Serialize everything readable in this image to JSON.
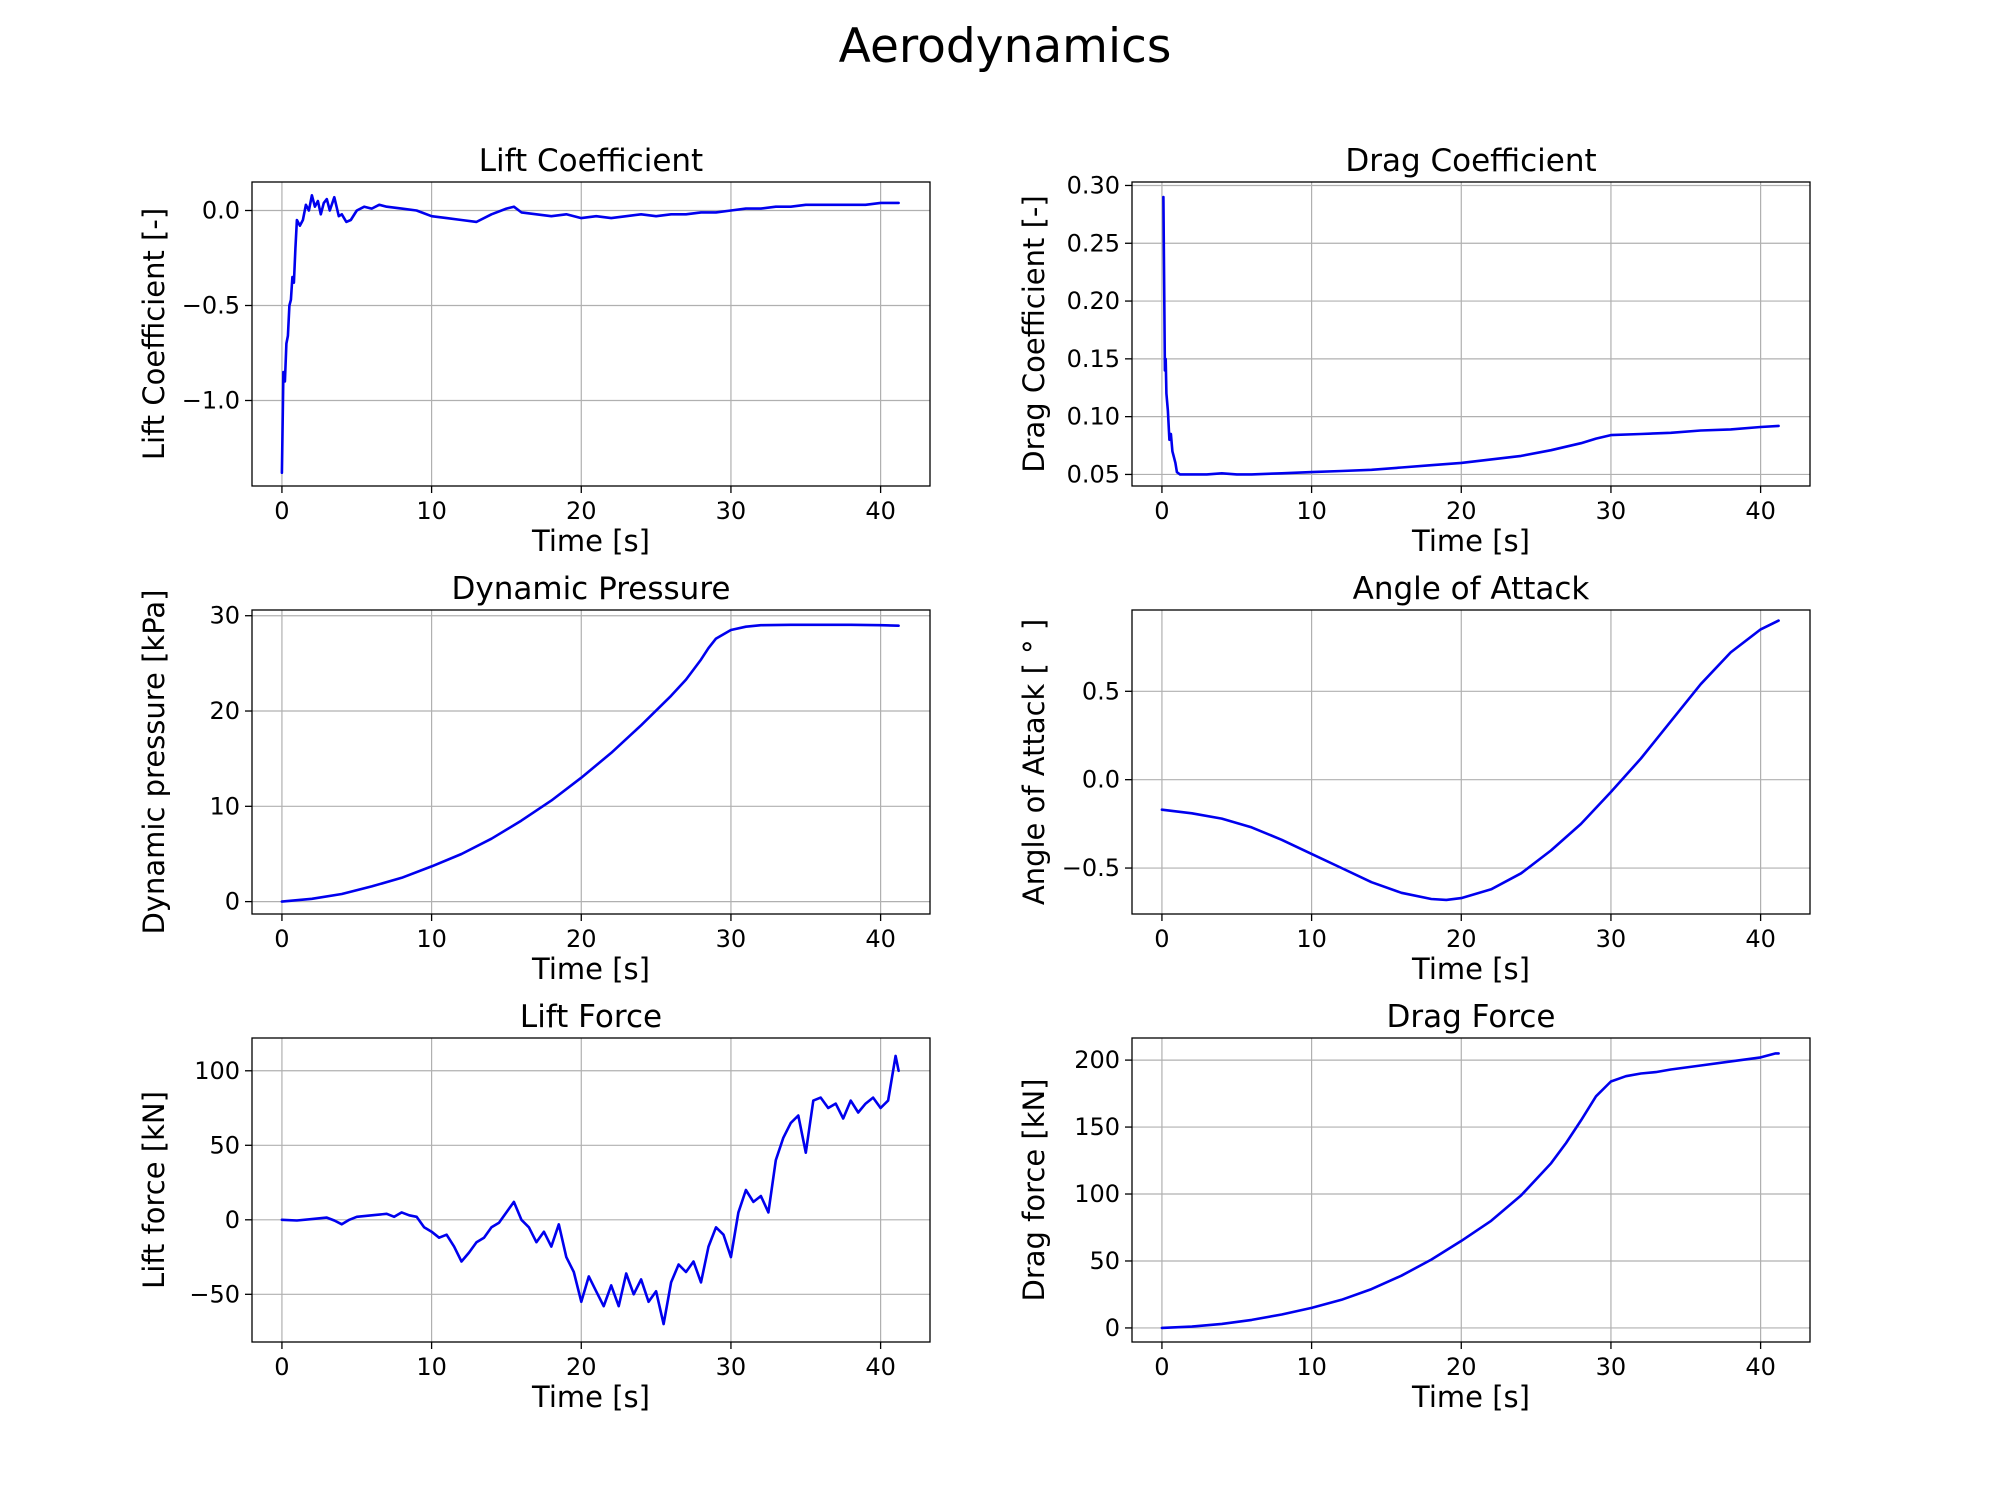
{
  "title": "Aerodynamics",
  "colors": {
    "series": "#0000ee",
    "grid": "#b0b0b0"
  },
  "chart_data": [
    {
      "type": "line",
      "title": "Lift Coefficient",
      "xlabel": "Time [s]",
      "ylabel": "Lift Coefficient [-]",
      "xlim": [
        -2,
        43.3
      ],
      "ylim": [
        -1.45,
        0.15
      ],
      "xticks": [
        0,
        10,
        20,
        30,
        40
      ],
      "yticks": [
        0.0,
        -0.5,
        -1.0
      ],
      "ytick_labels": [
        "0.0",
        "−0.5",
        "−1.0"
      ],
      "grid": true,
      "x": [
        0,
        0.1,
        0.2,
        0.3,
        0.4,
        0.5,
        0.6,
        0.7,
        0.8,
        0.9,
        1.0,
        1.2,
        1.4,
        1.6,
        1.8,
        2.0,
        2.2,
        2.4,
        2.6,
        2.8,
        3,
        3.2,
        3.5,
        3.8,
        4.0,
        4.3,
        4.6,
        5,
        5.5,
        6,
        6.5,
        7,
        8,
        9,
        10,
        11,
        12,
        13,
        14,
        15,
        15.5,
        16,
        17,
        18,
        19,
        20,
        21,
        22,
        23,
        24,
        25,
        26,
        27,
        28,
        29,
        30,
        31,
        32,
        33,
        34,
        35,
        36,
        37,
        38,
        39,
        40,
        41,
        41.2
      ],
      "y": [
        -1.38,
        -0.85,
        -0.9,
        -0.7,
        -0.66,
        -0.5,
        -0.47,
        -0.35,
        -0.38,
        -0.2,
        -0.05,
        -0.08,
        -0.05,
        0.03,
        0.0,
        0.08,
        0.02,
        0.05,
        -0.02,
        0.04,
        0.06,
        0.0,
        0.07,
        -0.03,
        -0.02,
        -0.06,
        -0.05,
        0.0,
        0.02,
        0.01,
        0.03,
        0.02,
        0.01,
        0.0,
        -0.03,
        -0.04,
        -0.05,
        -0.06,
        -0.02,
        0.01,
        0.02,
        -0.01,
        -0.02,
        -0.03,
        -0.02,
        -0.04,
        -0.03,
        -0.04,
        -0.03,
        -0.02,
        -0.03,
        -0.02,
        -0.02,
        -0.01,
        -0.01,
        0.0,
        0.01,
        0.01,
        0.02,
        0.02,
        0.03,
        0.03,
        0.03,
        0.03,
        0.03,
        0.04,
        0.04,
        0.04
      ]
    },
    {
      "type": "line",
      "title": "Drag Coefficient",
      "xlabel": "Time [s]",
      "ylabel": "Drag Coefficient [-]",
      "xlim": [
        -2,
        43.3
      ],
      "ylim": [
        0.04,
        0.303
      ],
      "xticks": [
        0,
        10,
        20,
        30,
        40
      ],
      "yticks": [
        0.05,
        0.1,
        0.15,
        0.2,
        0.25,
        0.3
      ],
      "ytick_labels": [
        "0.05",
        "0.10",
        "0.15",
        "0.20",
        "0.25",
        "0.30"
      ],
      "grid": true,
      "x": [
        0.1,
        0.2,
        0.25,
        0.3,
        0.4,
        0.5,
        0.6,
        0.7,
        0.8,
        0.9,
        1.0,
        1.2,
        1.5,
        2,
        3,
        4,
        5,
        6,
        8,
        10,
        12,
        14,
        16,
        18,
        20,
        22,
        24,
        26,
        27,
        28,
        29,
        30,
        32,
        34,
        36,
        38,
        40,
        41.2
      ],
      "y": [
        0.29,
        0.14,
        0.15,
        0.12,
        0.105,
        0.08,
        0.085,
        0.07,
        0.065,
        0.06,
        0.052,
        0.05,
        0.05,
        0.05,
        0.05,
        0.051,
        0.05,
        0.05,
        0.051,
        0.052,
        0.053,
        0.054,
        0.056,
        0.058,
        0.06,
        0.063,
        0.066,
        0.071,
        0.074,
        0.077,
        0.081,
        0.084,
        0.085,
        0.086,
        0.088,
        0.089,
        0.091,
        0.092
      ]
    },
    {
      "type": "line",
      "title": "Dynamic Pressure",
      "xlabel": "Time [s]",
      "ylabel": "Dynamic pressure [kPa]",
      "xlim": [
        -2,
        43.3
      ],
      "ylim": [
        -1.3,
        30.6
      ],
      "xticks": [
        0,
        10,
        20,
        30,
        40
      ],
      "yticks": [
        0,
        10,
        20,
        30
      ],
      "ytick_labels": [
        "0",
        "10",
        "20",
        "30"
      ],
      "grid": true,
      "x": [
        0,
        2,
        4,
        6,
        8,
        10,
        12,
        14,
        16,
        18,
        20,
        22,
        24,
        26,
        27,
        28,
        28.5,
        29,
        30,
        31,
        32,
        34,
        36,
        38,
        40,
        41.2
      ],
      "y": [
        0,
        0.3,
        0.8,
        1.6,
        2.5,
        3.7,
        5.0,
        6.6,
        8.5,
        10.6,
        13.0,
        15.6,
        18.5,
        21.6,
        23.3,
        25.4,
        26.6,
        27.6,
        28.5,
        28.85,
        29.0,
        29.05,
        29.05,
        29.05,
        29.0,
        28.95
      ]
    },
    {
      "type": "line",
      "title": "Angle of Attack",
      "xlabel": "Time [s]",
      "ylabel": "Angle of Attack [ ° ]",
      "xlim": [
        -2,
        43.3
      ],
      "ylim": [
        -0.76,
        0.96
      ],
      "xticks": [
        0,
        10,
        20,
        30,
        40
      ],
      "yticks": [
        -0.5,
        0.0,
        0.5
      ],
      "ytick_labels": [
        "−0.5",
        "0.0",
        "0.5"
      ],
      "grid": true,
      "x": [
        0,
        2,
        4,
        6,
        8,
        10,
        12,
        14,
        16,
        18,
        19,
        20,
        22,
        24,
        26,
        28,
        30,
        32,
        34,
        36,
        38,
        40,
        41.2
      ],
      "y": [
        -0.17,
        -0.19,
        -0.22,
        -0.27,
        -0.34,
        -0.42,
        -0.5,
        -0.58,
        -0.64,
        -0.675,
        -0.68,
        -0.67,
        -0.62,
        -0.53,
        -0.4,
        -0.25,
        -0.07,
        0.12,
        0.33,
        0.54,
        0.72,
        0.85,
        0.9
      ]
    },
    {
      "type": "line",
      "title": "Lift Force",
      "xlabel": "Time [s]",
      "ylabel": "Lift force [kN]",
      "xlim": [
        -2,
        43.3
      ],
      "ylim": [
        -82,
        122
      ],
      "xticks": [
        0,
        10,
        20,
        30,
        40
      ],
      "yticks": [
        -50,
        0,
        50,
        100
      ],
      "ytick_labels": [
        "−50",
        "0",
        "50",
        "100"
      ],
      "grid": true,
      "x": [
        0,
        1,
        2,
        3,
        3.5,
        4,
        4.5,
        5,
        6,
        7,
        7.5,
        8,
        8.5,
        9,
        9.5,
        10,
        10.5,
        11,
        11.5,
        12,
        12.5,
        13,
        13.5,
        14,
        14.5,
        15,
        15.5,
        16,
        16.5,
        17,
        17.5,
        18,
        18.5,
        19,
        19.5,
        20,
        20.5,
        21,
        21.5,
        22,
        22.5,
        23,
        23.5,
        24,
        24.5,
        25,
        25.5,
        26,
        26.5,
        27,
        27.5,
        28,
        28.5,
        29,
        29.5,
        30,
        30.5,
        31,
        31.5,
        32,
        32.5,
        33,
        33.5,
        34,
        34.5,
        35,
        35.5,
        36,
        36.5,
        37,
        37.5,
        38,
        38.5,
        39,
        39.5,
        40,
        40.5,
        41,
        41.2
      ],
      "y": [
        0,
        -0.5,
        0.5,
        1.5,
        -0.5,
        -3,
        0,
        2,
        3,
        4,
        2,
        5,
        3,
        2,
        -5,
        -8,
        -12,
        -10,
        -18,
        -28,
        -22,
        -15,
        -12,
        -5,
        -2,
        5,
        12,
        0,
        -5,
        -15,
        -8,
        -18,
        -3,
        -25,
        -35,
        -55,
        -38,
        -48,
        -58,
        -44,
        -58,
        -36,
        -50,
        -40,
        -55,
        -48,
        -70,
        -42,
        -30,
        -35,
        -28,
        -42,
        -18,
        -5,
        -10,
        -25,
        5,
        20,
        12,
        16,
        5,
        40,
        55,
        65,
        70,
        45,
        80,
        82,
        75,
        78,
        68,
        80,
        72,
        78,
        82,
        75,
        80,
        110,
        100
      ]
    },
    {
      "type": "line",
      "title": "Drag Force",
      "xlabel": "Time [s]",
      "ylabel": "Drag force [kN]",
      "xlim": [
        -2,
        43.3
      ],
      "ylim": [
        -10.5,
        216.5
      ],
      "xticks": [
        0,
        10,
        20,
        30,
        40
      ],
      "yticks": [
        0,
        50,
        100,
        150,
        200
      ],
      "ytick_labels": [
        "0",
        "50",
        "100",
        "150",
        "200"
      ],
      "grid": true,
      "x": [
        0,
        2,
        4,
        6,
        8,
        10,
        12,
        14,
        16,
        18,
        20,
        22,
        24,
        26,
        27,
        28,
        29,
        30,
        31,
        32,
        33,
        34,
        36,
        38,
        40,
        41,
        41.2
      ],
      "y": [
        0,
        1,
        3,
        6,
        10,
        15,
        21,
        29,
        39,
        51,
        65,
        80,
        99,
        123,
        138,
        155,
        173,
        184,
        188,
        190,
        191,
        193,
        196,
        199,
        202,
        205,
        205
      ]
    }
  ]
}
